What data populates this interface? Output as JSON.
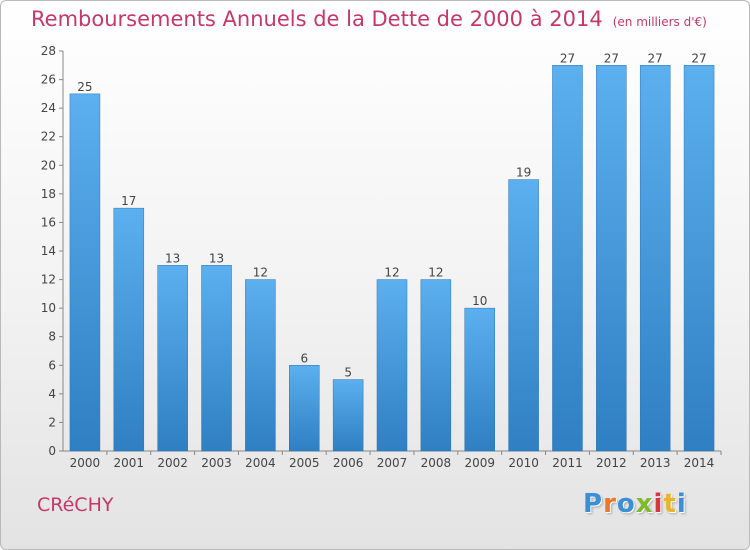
{
  "chart_data": {
    "type": "bar",
    "title": "Remboursements Annuels de la Dette de 2000 à 2014",
    "unit": "(en milliers d'€)",
    "categories": [
      "2000",
      "2001",
      "2002",
      "2003",
      "2004",
      "2005",
      "2006",
      "2007",
      "2008",
      "2009",
      "2010",
      "2011",
      "2012",
      "2013",
      "2014"
    ],
    "values": [
      25,
      17,
      13,
      13,
      12,
      6,
      5,
      12,
      12,
      10,
      19,
      27,
      27,
      27,
      27
    ],
    "ylim": [
      0,
      28
    ],
    "yticks": [
      0,
      2,
      4,
      6,
      8,
      10,
      12,
      14,
      16,
      18,
      20,
      22,
      24,
      26,
      28
    ],
    "grid": false,
    "bar_color": "#4a9de0"
  },
  "footer": {
    "commune": "CRéCHY",
    "brand_letters": [
      "P",
      "r",
      "o",
      "x",
      "i",
      "t",
      "i"
    ],
    "brand_colors": [
      "#3a8fd6",
      "#e8792b",
      "#3a8fd6",
      "#7dbb2a",
      "#d9363e",
      "#e8b42b",
      "#3a8fd6"
    ]
  }
}
